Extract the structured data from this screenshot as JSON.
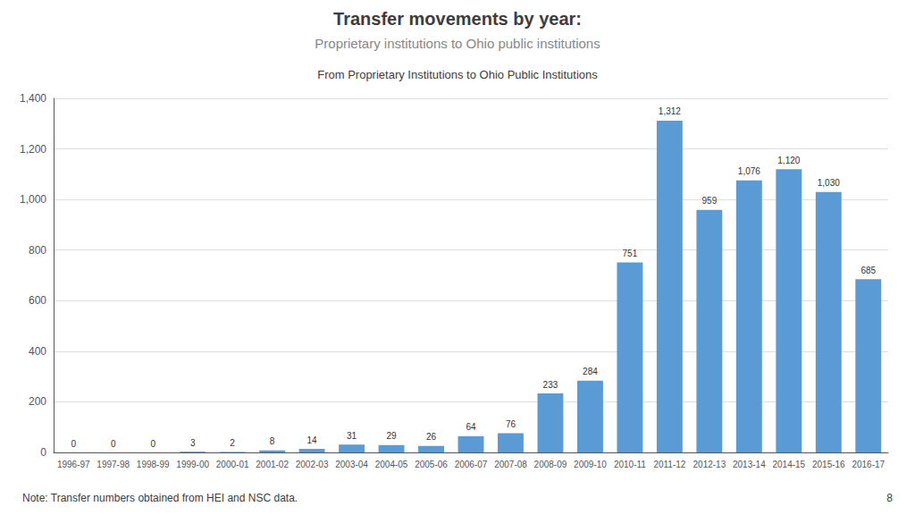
{
  "chart_data": {
    "type": "bar",
    "title": "Transfer movements by year:",
    "subtitle": "Proprietary institutions to Ohio public institutions",
    "annotations": [
      "From Proprietary Institutions to Ohio Public Institutions",
      "Note: Transfer numbers obtained from HEI and NSC data.",
      "8"
    ],
    "categories": [
      "1996-97",
      "1997-98",
      "1998-99",
      "1999-00",
      "2000-01",
      "2001-02",
      "2002-03",
      "2003-04",
      "2004-05",
      "2005-06",
      "2006-07",
      "2007-08",
      "2008-09",
      "2009-10",
      "2010-11",
      "2011-12",
      "2012-13",
      "2013-14",
      "2014-15",
      "2015-16",
      "2016-17"
    ],
    "values": [
      0,
      0,
      0,
      3,
      2,
      8,
      14,
      31,
      29,
      26,
      64,
      76,
      233,
      284,
      751,
      1312,
      959,
      1076,
      1120,
      1030,
      685
    ],
    "value_labels": [
      "0",
      "0",
      "0",
      "3",
      "2",
      "8",
      "14",
      "31",
      "29",
      "26",
      "64",
      "76",
      "233",
      "284",
      "751",
      "1,312",
      "959",
      "1,076",
      "1,120",
      "1,030",
      "685"
    ],
    "data_labels": true,
    "color": "#5b9bd5",
    "ylim": [
      0,
      1400
    ],
    "yticks": [
      0,
      200,
      400,
      600,
      800,
      {
        "value": 1000,
        "label": "1,000"
      },
      {
        "value": 1200,
        "label": "1,200"
      },
      {
        "value": 1400,
        "label": "1,400"
      }
    ],
    "grid": true
  }
}
